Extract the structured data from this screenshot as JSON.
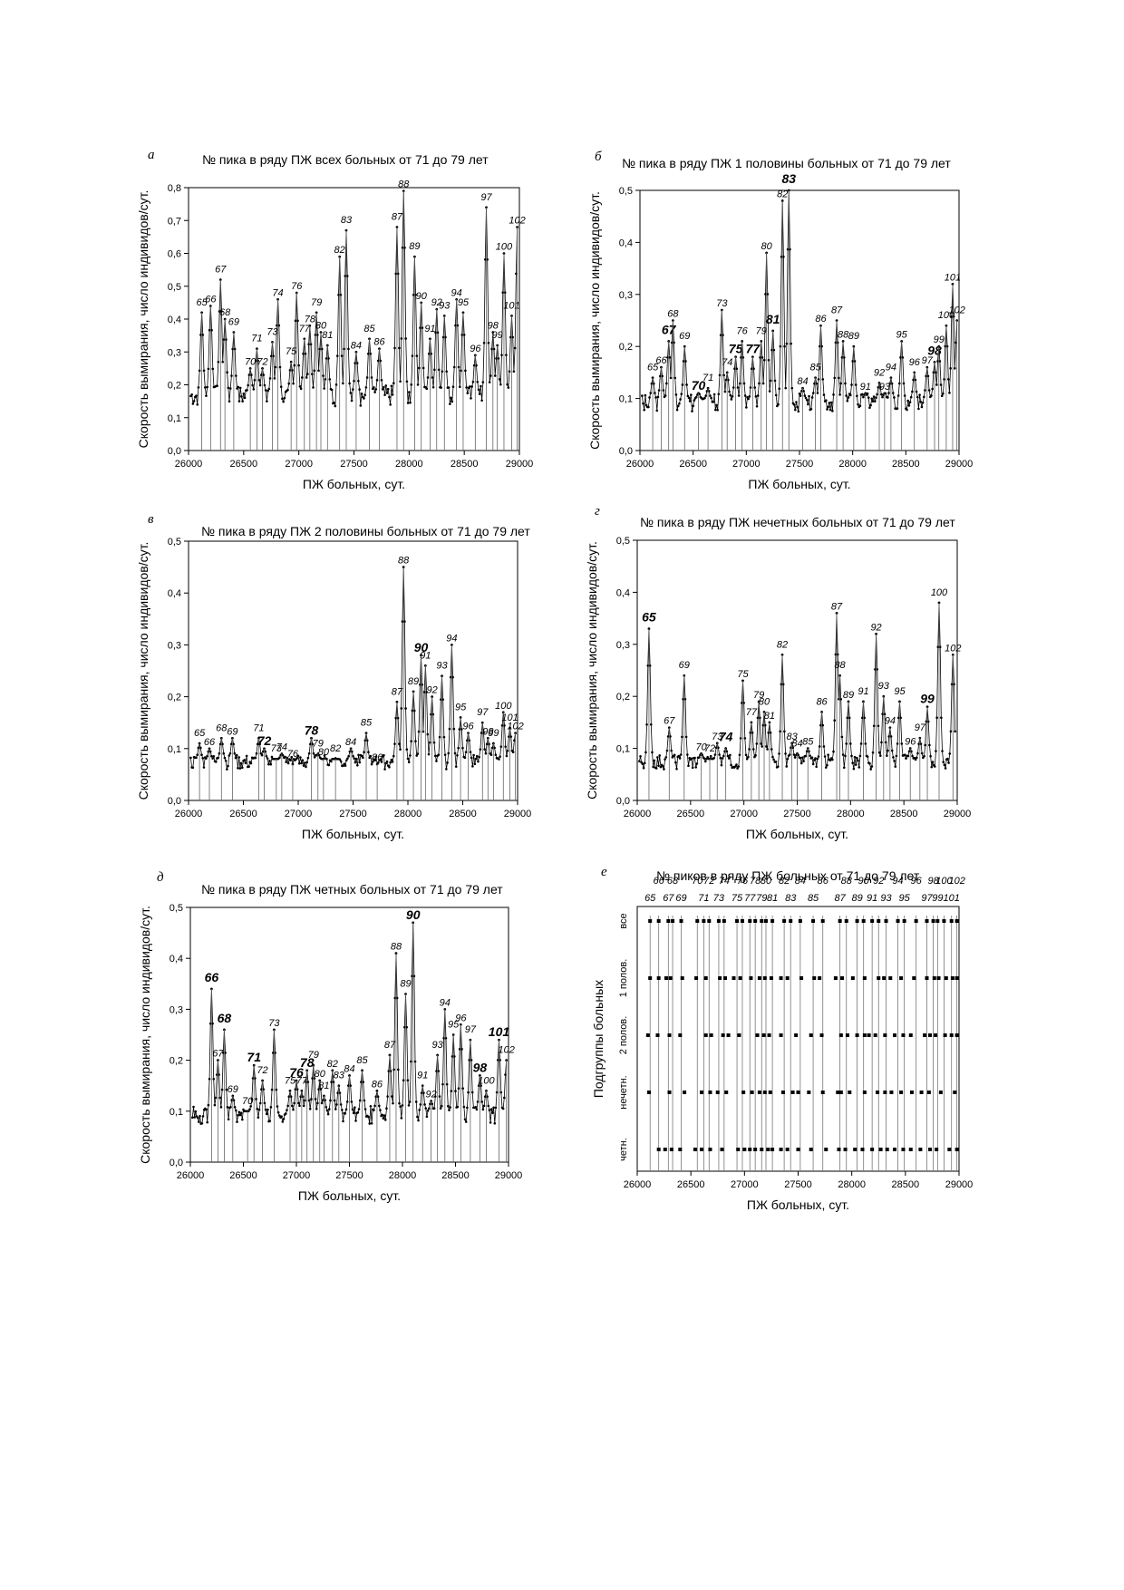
{
  "chart_data": [
    {
      "id": "a",
      "type": "line",
      "panel_letter": "а",
      "title": "№ пика  в ряду ПЖ  всех больных от 71 до 79 лет",
      "xlabel": "ПЖ больных, сут.",
      "ylabel": "Скорость вымирания, число индивидов/сут.",
      "xlim": [
        26000,
        29000
      ],
      "ylim": [
        0,
        0.8
      ],
      "xticks": [
        "26000",
        "26500",
        "27000",
        "27500",
        "28000",
        "28500",
        "29000"
      ],
      "yticks": [
        "0,0",
        "0,1",
        "0,2",
        "0,3",
        "0,4",
        "0,5",
        "0,6",
        "0,7",
        "0,8"
      ],
      "baseline": 0.18,
      "peaks": [
        {
          "n": "65",
          "x": 26120,
          "y": 0.42
        },
        {
          "n": "66",
          "x": 26200,
          "y": 0.44
        },
        {
          "n": "67",
          "x": 26290,
          "y": 0.52
        },
        {
          "n": "68",
          "x": 26330,
          "y": 0.4
        },
        {
          "n": "69",
          "x": 26410,
          "y": 0.36
        },
        {
          "n": "70",
          "x": 26560,
          "y": 0.25
        },
        {
          "n": "71",
          "x": 26620,
          "y": 0.31
        },
        {
          "n": "72",
          "x": 26670,
          "y": 0.25
        },
        {
          "n": "73",
          "x": 26760,
          "y": 0.33
        },
        {
          "n": "74",
          "x": 26810,
          "y": 0.46
        },
        {
          "n": "75",
          "x": 26930,
          "y": 0.27
        },
        {
          "n": "76",
          "x": 26980,
          "y": 0.48
        },
        {
          "n": "77",
          "x": 27050,
          "y": 0.34
        },
        {
          "n": "78",
          "x": 27100,
          "y": 0.38
        },
        {
          "n": "79",
          "x": 27160,
          "y": 0.42
        },
        {
          "n": "80",
          "x": 27200,
          "y": 0.36
        },
        {
          "n": "81",
          "x": 27260,
          "y": 0.32
        },
        {
          "n": "82",
          "x": 27370,
          "y": 0.59
        },
        {
          "n": "83",
          "x": 27430,
          "y": 0.67
        },
        {
          "n": "84",
          "x": 27520,
          "y": 0.3
        },
        {
          "n": "85",
          "x": 27640,
          "y": 0.34
        },
        {
          "n": "86",
          "x": 27730,
          "y": 0.31
        },
        {
          "n": "87",
          "x": 27890,
          "y": 0.68
        },
        {
          "n": "88",
          "x": 27950,
          "y": 0.79
        },
        {
          "n": "89",
          "x": 28050,
          "y": 0.59
        },
        {
          "n": "90",
          "x": 28110,
          "y": 0.45
        },
        {
          "n": "91",
          "x": 28190,
          "y": 0.34
        },
        {
          "n": "92",
          "x": 28250,
          "y": 0.43
        },
        {
          "n": "93",
          "x": 28320,
          "y": 0.41
        },
        {
          "n": "94",
          "x": 28430,
          "y": 0.46
        },
        {
          "n": "95",
          "x": 28490,
          "y": 0.42
        },
        {
          "n": "96",
          "x": 28600,
          "y": 0.29
        },
        {
          "n": "97",
          "x": 28700,
          "y": 0.74
        },
        {
          "n": "98",
          "x": 28760,
          "y": 0.36
        },
        {
          "n": "99",
          "x": 28800,
          "y": 0.32
        },
        {
          "n": "100",
          "x": 28860,
          "y": 0.6
        },
        {
          "n": "101",
          "x": 28930,
          "y": 0.41
        },
        {
          "n": "102",
          "x": 28980,
          "y": 0.68
        }
      ],
      "bold_peaks": []
    },
    {
      "id": "b",
      "type": "line",
      "panel_letter": "б",
      "title": "№ пика в ряду ПЖ 1 половины больных от 71 до 79 лет",
      "xlabel": "ПЖ больных, сут.",
      "ylabel": "Скорость вымирания, число индивидов/сут.",
      "xlim": [
        26000,
        29000
      ],
      "ylim": [
        0,
        0.5
      ],
      "xticks": [
        "26000",
        "26500",
        "27000",
        "27500",
        "28000",
        "28500",
        "29000"
      ],
      "yticks": [
        "0,0",
        "0,1",
        "0,2",
        "0,3",
        "0,4",
        "0,5"
      ],
      "baseline": 0.1,
      "peaks": [
        {
          "n": "65",
          "x": 26120,
          "y": 0.14
        },
        {
          "n": "66",
          "x": 26200,
          "y": 0.16
        },
        {
          "n": "67",
          "x": 26270,
          "y": 0.21
        },
        {
          "n": "68",
          "x": 26310,
          "y": 0.25
        },
        {
          "n": "69",
          "x": 26420,
          "y": 0.2
        },
        {
          "n": "70",
          "x": 26550,
          "y": 0.11
        },
        {
          "n": "71",
          "x": 26640,
          "y": 0.12
        },
        {
          "n": "73",
          "x": 26770,
          "y": 0.27
        },
        {
          "n": "74",
          "x": 26820,
          "y": 0.15
        },
        {
          "n": "75",
          "x": 26900,
          "y": 0.18
        },
        {
          "n": "76",
          "x": 26960,
          "y": 0.21
        },
        {
          "n": "77",
          "x": 27060,
          "y": 0.18
        },
        {
          "n": "79",
          "x": 27140,
          "y": 0.21
        },
        {
          "n": "80",
          "x": 27190,
          "y": 0.38
        },
        {
          "n": "81",
          "x": 27250,
          "y": 0.23
        },
        {
          "n": "82",
          "x": 27340,
          "y": 0.48
        },
        {
          "n": "83",
          "x": 27400,
          "y": 0.5
        },
        {
          "n": "84",
          "x": 27530,
          "y": 0.12
        },
        {
          "n": "85",
          "x": 27650,
          "y": 0.14
        },
        {
          "n": "86",
          "x": 27700,
          "y": 0.24
        },
        {
          "n": "87",
          "x": 27850,
          "y": 0.25
        },
        {
          "n": "88",
          "x": 27910,
          "y": 0.21
        },
        {
          "n": "89",
          "x": 28010,
          "y": 0.2
        },
        {
          "n": "91",
          "x": 28120,
          "y": 0.11
        },
        {
          "n": "92",
          "x": 28250,
          "y": 0.13
        },
        {
          "n": "93",
          "x": 28300,
          "y": 0.11
        },
        {
          "n": "94",
          "x": 28360,
          "y": 0.14
        },
        {
          "n": "95",
          "x": 28460,
          "y": 0.21
        },
        {
          "n": "96",
          "x": 28580,
          "y": 0.15
        },
        {
          "n": "97",
          "x": 28700,
          "y": 0.16
        },
        {
          "n": "98",
          "x": 28770,
          "y": 0.17
        },
        {
          "n": "99",
          "x": 28810,
          "y": 0.2
        },
        {
          "n": "100",
          "x": 28880,
          "y": 0.24
        },
        {
          "n": "101",
          "x": 28940,
          "y": 0.32
        },
        {
          "n": "102",
          "x": 28980,
          "y": 0.25
        }
      ],
      "bold_peaks": [
        "67",
        "70",
        "75",
        "77",
        "81",
        "83",
        "98"
      ]
    },
    {
      "id": "v",
      "type": "line",
      "panel_letter": "в",
      "title": "№ пика в ряду ПЖ  2 половины больных от 71 до 79 лет",
      "xlabel": "ПЖ больных, сут.",
      "ylabel": "Скорость вымирания, число индивидов/сут.",
      "xlim": [
        26000,
        29000
      ],
      "ylim": [
        0,
        0.5
      ],
      "xticks": [
        "26000",
        "26500",
        "27000",
        "27500",
        "28000",
        "28500",
        "29000"
      ],
      "yticks": [
        "0,0",
        "0,1",
        "0,2",
        "0,3",
        "0,4",
        "0,5"
      ],
      "baseline": 0.08,
      "peaks": [
        {
          "n": "65",
          "x": 26100,
          "y": 0.11
        },
        {
          "n": "66",
          "x": 26190,
          "y": 0.1
        },
        {
          "n": "68",
          "x": 26300,
          "y": 0.12
        },
        {
          "n": "69",
          "x": 26400,
          "y": 0.12
        },
        {
          "n": "71",
          "x": 26640,
          "y": 0.12
        },
        {
          "n": "72",
          "x": 26690,
          "y": 0.1
        },
        {
          "n": "73",
          "x": 26800,
          "y": 0.08
        },
        {
          "n": "74",
          "x": 26850,
          "y": 0.09
        },
        {
          "n": "76",
          "x": 26950,
          "y": 0.07
        },
        {
          "n": "78",
          "x": 27120,
          "y": 0.12
        },
        {
          "n": "79",
          "x": 27180,
          "y": 0.09
        },
        {
          "n": "80",
          "x": 27230,
          "y": 0.08
        },
        {
          "n": "82",
          "x": 27340,
          "y": 0.08
        },
        {
          "n": "84",
          "x": 27480,
          "y": 0.1
        },
        {
          "n": "85",
          "x": 27620,
          "y": 0.13
        },
        {
          "n": "86",
          "x": 27720,
          "y": 0.07
        },
        {
          "n": "87",
          "x": 27900,
          "y": 0.19
        },
        {
          "n": "88",
          "x": 27960,
          "y": 0.45
        },
        {
          "n": "89",
          "x": 28050,
          "y": 0.21
        },
        {
          "n": "90",
          "x": 28120,
          "y": 0.28
        },
        {
          "n": "91",
          "x": 28160,
          "y": 0.26
        },
        {
          "n": "92",
          "x": 28220,
          "y": 0.2
        },
        {
          "n": "93",
          "x": 28310,
          "y": 0.24
        },
        {
          "n": "94",
          "x": 28400,
          "y": 0.3
        },
        {
          "n": "95",
          "x": 28480,
          "y": 0.16
        },
        {
          "n": "96",
          "x": 28550,
          "y": 0.13
        },
        {
          "n": "97",
          "x": 28680,
          "y": 0.15
        },
        {
          "n": "98",
          "x": 28730,
          "y": 0.12
        },
        {
          "n": "99",
          "x": 28780,
          "y": 0.11
        },
        {
          "n": "100",
          "x": 28870,
          "y": 0.17
        },
        {
          "n": "101",
          "x": 28930,
          "y": 0.14
        },
        {
          "n": "102",
          "x": 28980,
          "y": 0.13
        }
      ],
      "bold_peaks": [
        "72",
        "78",
        "90"
      ]
    },
    {
      "id": "g",
      "type": "line",
      "panel_letter": "г",
      "title": "№ пика в ряду ПЖ  нечетных больных от 71 до 79 лет",
      "xlabel": "ПЖ больных, сут.",
      "ylabel": "Скорость вымирания, число индивидов/сут.",
      "xlim": [
        26000,
        29000
      ],
      "ylim": [
        0,
        0.5
      ],
      "xticks": [
        "26000",
        "26500",
        "27000",
        "27500",
        "28000",
        "28500",
        "29000"
      ],
      "yticks": [
        "0,0",
        "0,1",
        "0,2",
        "0,3",
        "0,4",
        "0,5"
      ],
      "baseline": 0.08,
      "peaks": [
        {
          "n": "65",
          "x": 26110,
          "y": 0.33
        },
        {
          "n": "67",
          "x": 26300,
          "y": 0.14
        },
        {
          "n": "69",
          "x": 26440,
          "y": 0.24
        },
        {
          "n": "70",
          "x": 26600,
          "y": 0.09
        },
        {
          "n": "72",
          "x": 26680,
          "y": 0.08
        },
        {
          "n": "73",
          "x": 26750,
          "y": 0.11
        },
        {
          "n": "74",
          "x": 26830,
          "y": 0.1
        },
        {
          "n": "75",
          "x": 26990,
          "y": 0.23
        },
        {
          "n": "77",
          "x": 27070,
          "y": 0.15
        },
        {
          "n": "79",
          "x": 27140,
          "y": 0.19
        },
        {
          "n": "80",
          "x": 27190,
          "y": 0.17
        },
        {
          "n": "81",
          "x": 27240,
          "y": 0.15
        },
        {
          "n": "82",
          "x": 27360,
          "y": 0.28
        },
        {
          "n": "83",
          "x": 27450,
          "y": 0.11
        },
        {
          "n": "84",
          "x": 27500,
          "y": 0.09
        },
        {
          "n": "85",
          "x": 27600,
          "y": 0.1
        },
        {
          "n": "86",
          "x": 27730,
          "y": 0.17
        },
        {
          "n": "87",
          "x": 27870,
          "y": 0.36
        },
        {
          "n": "88",
          "x": 27900,
          "y": 0.24
        },
        {
          "n": "89",
          "x": 27980,
          "y": 0.19
        },
        {
          "n": "91",
          "x": 28120,
          "y": 0.19
        },
        {
          "n": "92",
          "x": 28240,
          "y": 0.32
        },
        {
          "n": "93",
          "x": 28310,
          "y": 0.2
        },
        {
          "n": "94",
          "x": 28370,
          "y": 0.14
        },
        {
          "n": "95",
          "x": 28460,
          "y": 0.19
        },
        {
          "n": "96",
          "x": 28560,
          "y": 0.1
        },
        {
          "n": "97",
          "x": 28650,
          "y": 0.12
        },
        {
          "n": "99",
          "x": 28720,
          "y": 0.18
        },
        {
          "n": "100",
          "x": 28830,
          "y": 0.38
        },
        {
          "n": "102",
          "x": 28960,
          "y": 0.28
        }
      ],
      "bold_peaks": [
        "65",
        "74",
        "99"
      ]
    },
    {
      "id": "d",
      "type": "line",
      "panel_letter": "д",
      "title": "№ пика в ряду ПЖ четных больных от 71 до 79 лет",
      "xlabel": "ПЖ больных, сут.",
      "ylabel": "Скорость вымирания, число индивидов/сут.",
      "xlim": [
        26000,
        29000
      ],
      "ylim": [
        0,
        0.5
      ],
      "xticks": [
        "26000",
        "26500",
        "27000",
        "27500",
        "28000",
        "28500",
        "29000"
      ],
      "yticks": [
        "0,0",
        "0,1",
        "0,2",
        "0,3",
        "0,4",
        "0,5"
      ],
      "baseline": 0.1,
      "peaks": [
        {
          "n": "66",
          "x": 26200,
          "y": 0.34
        },
        {
          "n": "67",
          "x": 26260,
          "y": 0.2
        },
        {
          "n": "68",
          "x": 26320,
          "y": 0.26
        },
        {
          "n": "69",
          "x": 26400,
          "y": 0.13
        },
        {
          "n": "70",
          "x": 26540,
          "y": 0.1
        },
        {
          "n": "71",
          "x": 26600,
          "y": 0.19
        },
        {
          "n": "72",
          "x": 26680,
          "y": 0.16
        },
        {
          "n": "73",
          "x": 26790,
          "y": 0.26
        },
        {
          "n": "75",
          "x": 26940,
          "y": 0.14
        },
        {
          "n": "76",
          "x": 27000,
          "y": 0.16
        },
        {
          "n": "77",
          "x": 27050,
          "y": 0.14
        },
        {
          "n": "78",
          "x": 27100,
          "y": 0.18
        },
        {
          "n": "79",
          "x": 27160,
          "y": 0.19
        },
        {
          "n": "80",
          "x": 27220,
          "y": 0.16
        },
        {
          "n": "81",
          "x": 27260,
          "y": 0.13
        },
        {
          "n": "82",
          "x": 27340,
          "y": 0.18
        },
        {
          "n": "83",
          "x": 27400,
          "y": 0.15
        },
        {
          "n": "84",
          "x": 27500,
          "y": 0.17
        },
        {
          "n": "85",
          "x": 27620,
          "y": 0.18
        },
        {
          "n": "86",
          "x": 27760,
          "y": 0.14
        },
        {
          "n": "87",
          "x": 27880,
          "y": 0.21
        },
        {
          "n": "88",
          "x": 27940,
          "y": 0.41
        },
        {
          "n": "89",
          "x": 28030,
          "y": 0.33
        },
        {
          "n": "90",
          "x": 28100,
          "y": 0.47
        },
        {
          "n": "91",
          "x": 28190,
          "y": 0.15
        },
        {
          "n": "92",
          "x": 28270,
          "y": 0.12
        },
        {
          "n": "93",
          "x": 28330,
          "y": 0.21
        },
        {
          "n": "94",
          "x": 28400,
          "y": 0.3
        },
        {
          "n": "95",
          "x": 28480,
          "y": 0.25
        },
        {
          "n": "96",
          "x": 28550,
          "y": 0.27
        },
        {
          "n": "97",
          "x": 28640,
          "y": 0.24
        },
        {
          "n": "98",
          "x": 28730,
          "y": 0.17
        },
        {
          "n": "100",
          "x": 28790,
          "y": 0.14
        },
        {
          "n": "101",
          "x": 28910,
          "y": 0.24
        },
        {
          "n": "102",
          "x": 28980,
          "y": 0.2
        }
      ],
      "bold_peaks": [
        "66",
        "68",
        "71",
        "76",
        "78",
        "90",
        "98",
        "101"
      ]
    },
    {
      "id": "e",
      "type": "scatter",
      "panel_letter": "е",
      "title": "№ пиков  в ряду ПЖ больных от 71 до 79 лет",
      "xlabel": "ПЖ больных, сут.",
      "ylabel": "Подгруппы больных",
      "xlim": [
        26000,
        29000
      ],
      "xticks": [
        "26000",
        "26500",
        "27000",
        "27500",
        "28000",
        "28500",
        "29000"
      ],
      "categories": [
        "четн.",
        "нечетн.",
        "2 полов.",
        "1 полов.",
        "все"
      ],
      "top_labels_row1": [
        "66",
        "68",
        "70",
        "72",
        "74",
        "76",
        "78",
        "80",
        "82",
        "84",
        "86",
        "88",
        "90",
        "92",
        "94",
        "96",
        "98",
        "100",
        "102"
      ],
      "top_labels_row2": [
        "65",
        "67",
        "69",
        "71",
        "73",
        "75",
        "77",
        "79",
        "81",
        "83",
        "85",
        "87",
        "89",
        "91",
        "93",
        "95",
        "97",
        "99",
        "101"
      ]
    }
  ]
}
